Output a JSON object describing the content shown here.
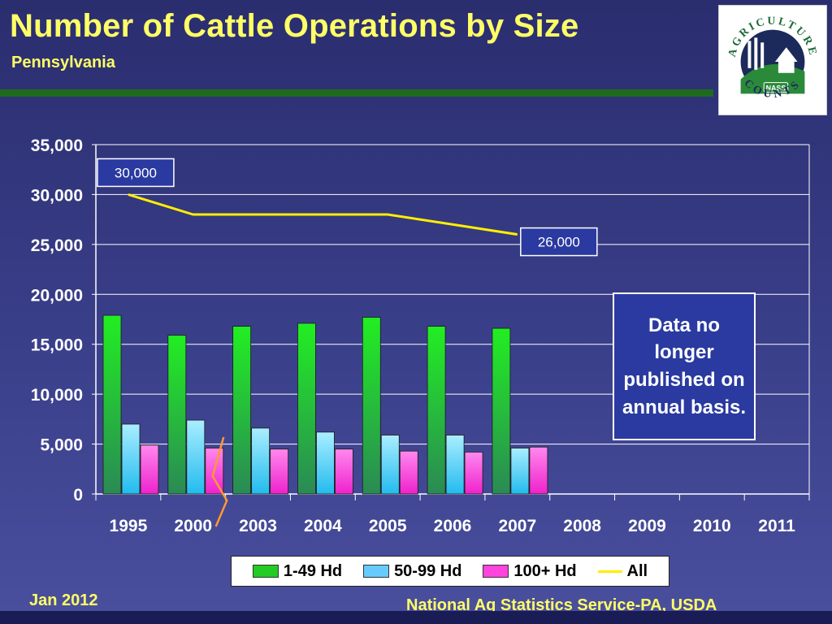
{
  "header": {
    "title": "Number of Cattle Operations by Size",
    "subtitle": "Pennsylvania"
  },
  "logo": {
    "top_text": "AGRICULTURE",
    "bottom_text": "COUNTS",
    "badge_text": "NASS"
  },
  "note": "Data no longer published on annual basis.",
  "footer": {
    "date": "Jan 2012",
    "source": "National Ag Statistics Service-PA, USDA"
  },
  "colors": {
    "series_1_49": "#22cc22",
    "series_50_99": "#66ccff",
    "series_100_plus": "#ff44dd",
    "series_all": "#ffee00",
    "text_accent": "#ffff66"
  },
  "chart_data": {
    "type": "bar",
    "categories": [
      "1995",
      "2000",
      "2003",
      "2004",
      "2005",
      "2006",
      "2007",
      "2008",
      "2009",
      "2010",
      "2011"
    ],
    "ylim": [
      0,
      35000
    ],
    "yticks": [
      "0",
      "5,000",
      "10,000",
      "15,000",
      "20,000",
      "25,000",
      "30,000",
      "35,000"
    ],
    "grid": true,
    "legend_position": "bottom",
    "series": [
      {
        "name": "1-49 Hd",
        "kind": "bar",
        "values": [
          17900,
          15900,
          16800,
          17100,
          17700,
          16800,
          16600,
          null,
          null,
          null,
          null
        ]
      },
      {
        "name": "50-99 Hd",
        "kind": "bar",
        "values": [
          7000,
          7400,
          6600,
          6200,
          5900,
          5900,
          4600,
          null,
          null,
          null,
          null
        ]
      },
      {
        "name": "100+ Hd",
        "kind": "bar",
        "values": [
          4900,
          4600,
          4500,
          4500,
          4300,
          4200,
          4700,
          null,
          null,
          null,
          null
        ]
      },
      {
        "name": "All",
        "kind": "line",
        "values": [
          30000,
          28000,
          28000,
          28000,
          28000,
          27000,
          26000,
          null,
          null,
          null,
          null
        ]
      }
    ],
    "annotations": [
      {
        "text": "30,000",
        "category": "1995"
      },
      {
        "text": "26,000",
        "category": "2007"
      }
    ]
  }
}
